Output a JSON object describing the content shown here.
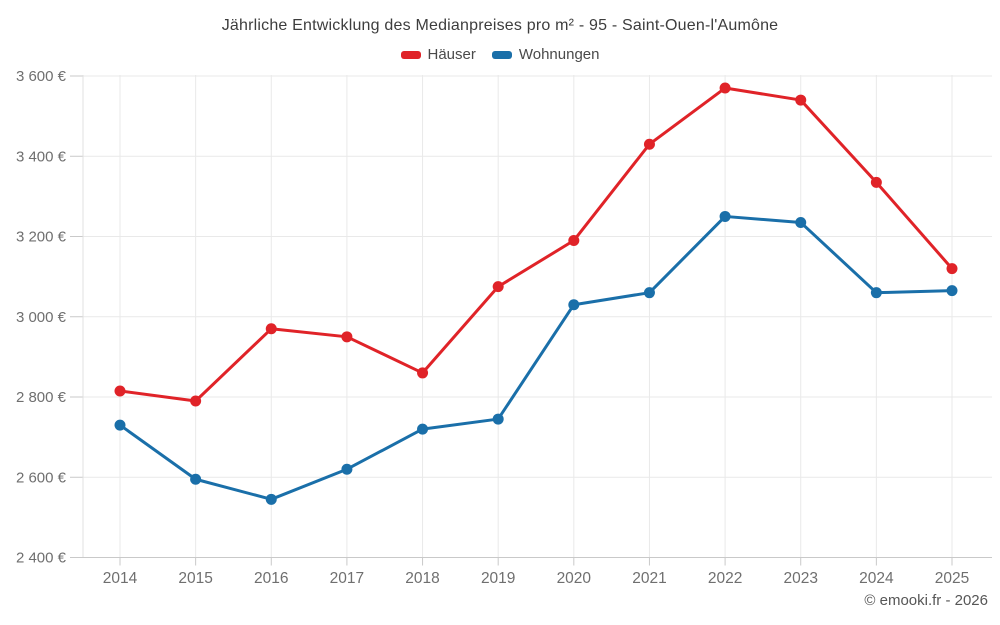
{
  "attribution": "© emooki.fr - 2026",
  "chart_data": {
    "type": "line",
    "title": "Jährliche Entwicklung des Medianpreises pro m² - 95 - Saint-Ouen-l'Aumône",
    "categories": [
      "2014",
      "2015",
      "2016",
      "2017",
      "2018",
      "2019",
      "2020",
      "2021",
      "2022",
      "2023",
      "2024",
      "2025"
    ],
    "series": [
      {
        "name": "Häuser",
        "color": "#e02328",
        "values": [
          2815,
          2790,
          2970,
          2950,
          2860,
          3075,
          3190,
          3430,
          3570,
          3540,
          3335,
          3120
        ]
      },
      {
        "name": "Wohnungen",
        "color": "#1a6fa9",
        "values": [
          2730,
          2595,
          2545,
          2620,
          2720,
          2745,
          3030,
          3060,
          3250,
          3235,
          3060,
          3065
        ]
      }
    ],
    "ylim": [
      2400,
      3600
    ],
    "ytick_step": 200,
    "y_format": "{value} €",
    "grid": true,
    "legend_position": "top",
    "colors": {
      "grid_line": "#e9e9e9",
      "axis_line": "#c9c9c9",
      "tick_label": "#6f6f6f",
      "title_text": "#3d3d3d"
    }
  }
}
